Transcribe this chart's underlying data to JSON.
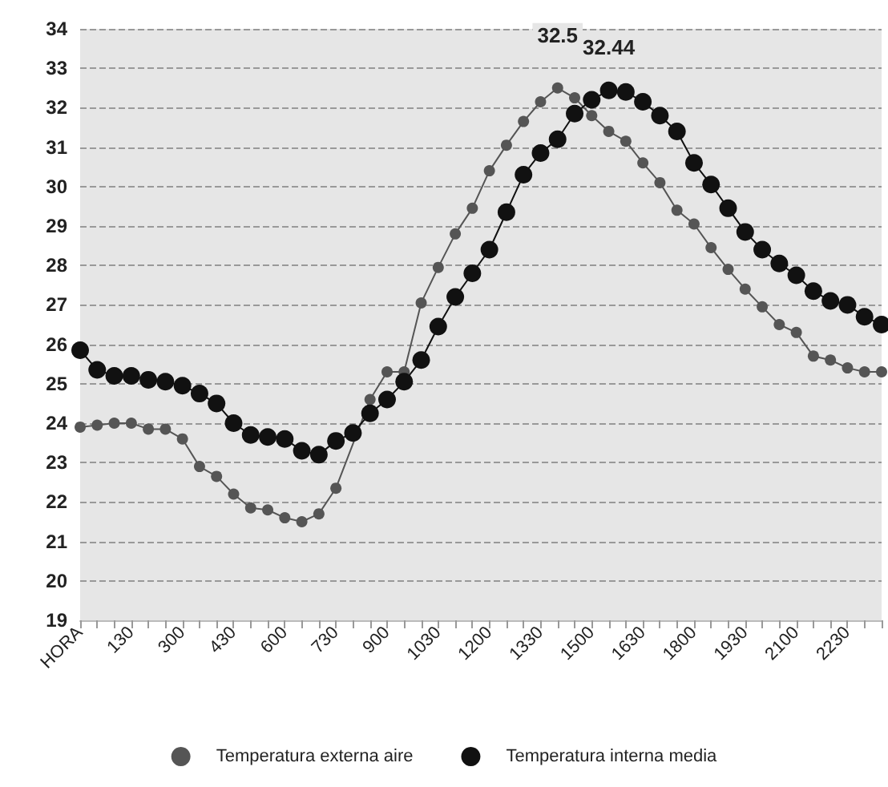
{
  "chart_data": {
    "type": "line",
    "categories": [
      "HORA",
      null,
      null,
      "130",
      null,
      null,
      "300",
      null,
      null,
      "430",
      null,
      null,
      "600",
      null,
      null,
      "730",
      null,
      null,
      "900",
      null,
      null,
      "1030",
      null,
      null,
      "1200",
      null,
      null,
      "1330",
      null,
      null,
      "1500",
      null,
      null,
      "1630",
      null,
      null,
      "1800",
      null,
      null,
      "1930",
      null,
      null,
      "2100",
      null,
      null,
      "2230",
      null,
      null
    ],
    "series": [
      {
        "name": "Temperatura externa aire",
        "color": "#555555",
        "values": [
          23.9,
          23.95,
          24.0,
          24.0,
          23.85,
          23.85,
          23.6,
          22.9,
          22.65,
          22.2,
          21.85,
          21.8,
          21.6,
          21.5,
          21.7,
          22.35,
          null,
          24.6,
          25.3,
          25.3,
          27.05,
          27.95,
          28.8,
          29.45,
          30.4,
          31.05,
          31.65,
          32.15,
          32.5,
          32.25,
          31.8,
          31.4,
          31.15,
          30.6,
          30.1,
          29.4,
          29.05,
          28.45,
          27.9,
          27.4,
          26.95,
          26.5,
          26.3,
          25.7,
          25.6,
          25.4,
          25.3,
          25.3
        ],
        "value_labels": [
          null,
          null,
          null,
          null,
          null,
          null,
          null,
          null,
          null,
          null,
          null,
          null,
          null,
          null,
          null,
          null,
          null,
          null,
          null,
          null,
          null,
          null,
          null,
          null,
          null,
          null,
          null,
          null,
          "32.5",
          null,
          null,
          null,
          null,
          null,
          null,
          null,
          null,
          null,
          null,
          null,
          null,
          null,
          null,
          null,
          null,
          null,
          null,
          null
        ]
      },
      {
        "name": "Temperatura interna media",
        "color": "#111111",
        "values": [
          25.85,
          25.35,
          25.2,
          25.2,
          25.1,
          25.05,
          24.95,
          24.75,
          24.5,
          24.0,
          23.7,
          23.65,
          23.6,
          23.3,
          23.2,
          23.55,
          23.75,
          24.25,
          24.6,
          25.05,
          25.6,
          26.45,
          27.2,
          27.8,
          28.4,
          29.35,
          30.3,
          30.85,
          31.2,
          31.85,
          32.2,
          32.44,
          32.4,
          32.15,
          31.8,
          31.4,
          30.6,
          30.05,
          29.45,
          28.85,
          28.4,
          28.05,
          27.75,
          27.35,
          27.1,
          27.0,
          26.7,
          26.5
        ],
        "value_labels": [
          null,
          null,
          null,
          null,
          null,
          null,
          null,
          null,
          null,
          null,
          null,
          null,
          null,
          null,
          null,
          null,
          null,
          null,
          null,
          null,
          null,
          null,
          null,
          null,
          null,
          null,
          null,
          null,
          null,
          null,
          null,
          "32.44",
          null,
          null,
          null,
          null,
          null,
          null,
          null,
          null,
          null,
          null,
          null,
          null,
          null,
          null,
          null,
          null
        ]
      }
    ],
    "ylim": [
      19,
      34
    ],
    "yticks": [
      19,
      20,
      21,
      22,
      23,
      24,
      25,
      26,
      27,
      28,
      29,
      30,
      31,
      32,
      33,
      34
    ],
    "grid": "y",
    "legend": "bottom",
    "marker": "circle",
    "line_style": "solid"
  }
}
